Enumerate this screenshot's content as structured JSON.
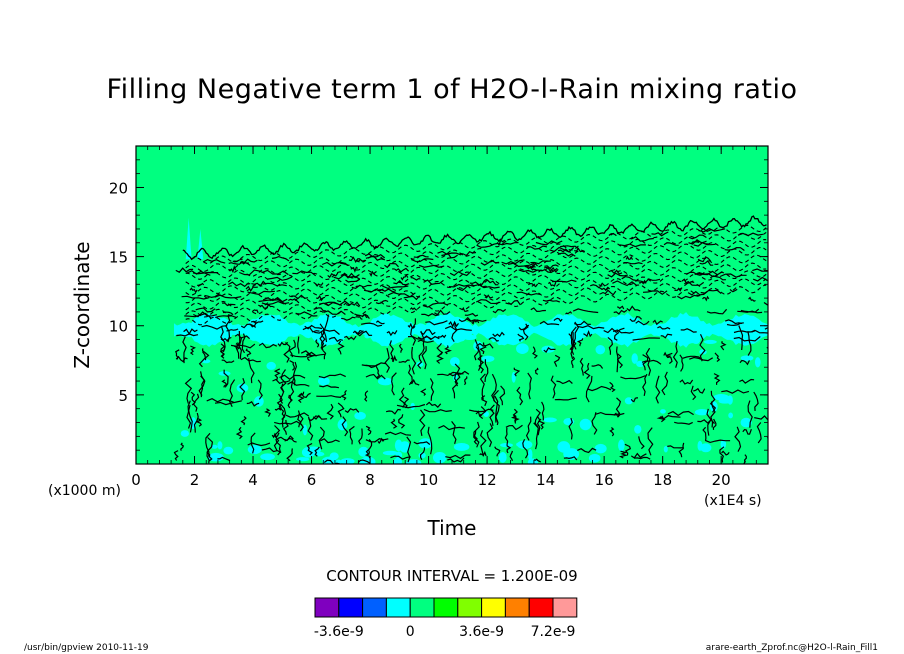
{
  "chart_data": {
    "type": "heatmap",
    "title": "Filling Negative term 1 of H2O-l-Rain mixing ratio",
    "xlabel": "Time",
    "ylabel": "Z-coordinate",
    "x_unit": "(x1E4 s)",
    "y_unit": "(x1000 m)",
    "xlim": [
      0,
      21.6
    ],
    "ylim": [
      0,
      23
    ],
    "x_ticks": [
      "0",
      "2",
      "4",
      "6",
      "8",
      "10",
      "12",
      "14",
      "16",
      "18",
      "20"
    ],
    "y_ticks": [
      "5",
      "10",
      "15",
      "20"
    ],
    "contour_interval_text": "CONTOUR INTERVAL = 1.200E-09",
    "background_level": "0",
    "features": [
      {
        "name": "cyan band",
        "level": "-1.2e-9",
        "z_center": 9.8,
        "x_range": [
          1.3,
          21.6
        ]
      },
      {
        "name": "contour top",
        "z_top_start": 15,
        "z_top_end": 17.5,
        "x_range": [
          1.3,
          21.6
        ]
      }
    ],
    "colorbar": {
      "colors": [
        "#7f00bf",
        "#0000ff",
        "#0060ff",
        "#00ffff",
        "#00ff80",
        "#00ff00",
        "#80ff00",
        "#ffff00",
        "#ff8000",
        "#ff0000",
        "#ff9999"
      ],
      "labels": [
        "-3.6e-9",
        "0",
        "3.6e-9",
        "7.2e-9"
      ]
    }
  },
  "footer": {
    "left": "/usr/bin/gpview  2010-11-19",
    "right": "arare-earth_Zprof.nc@H2O-l-Rain_Fill1"
  }
}
